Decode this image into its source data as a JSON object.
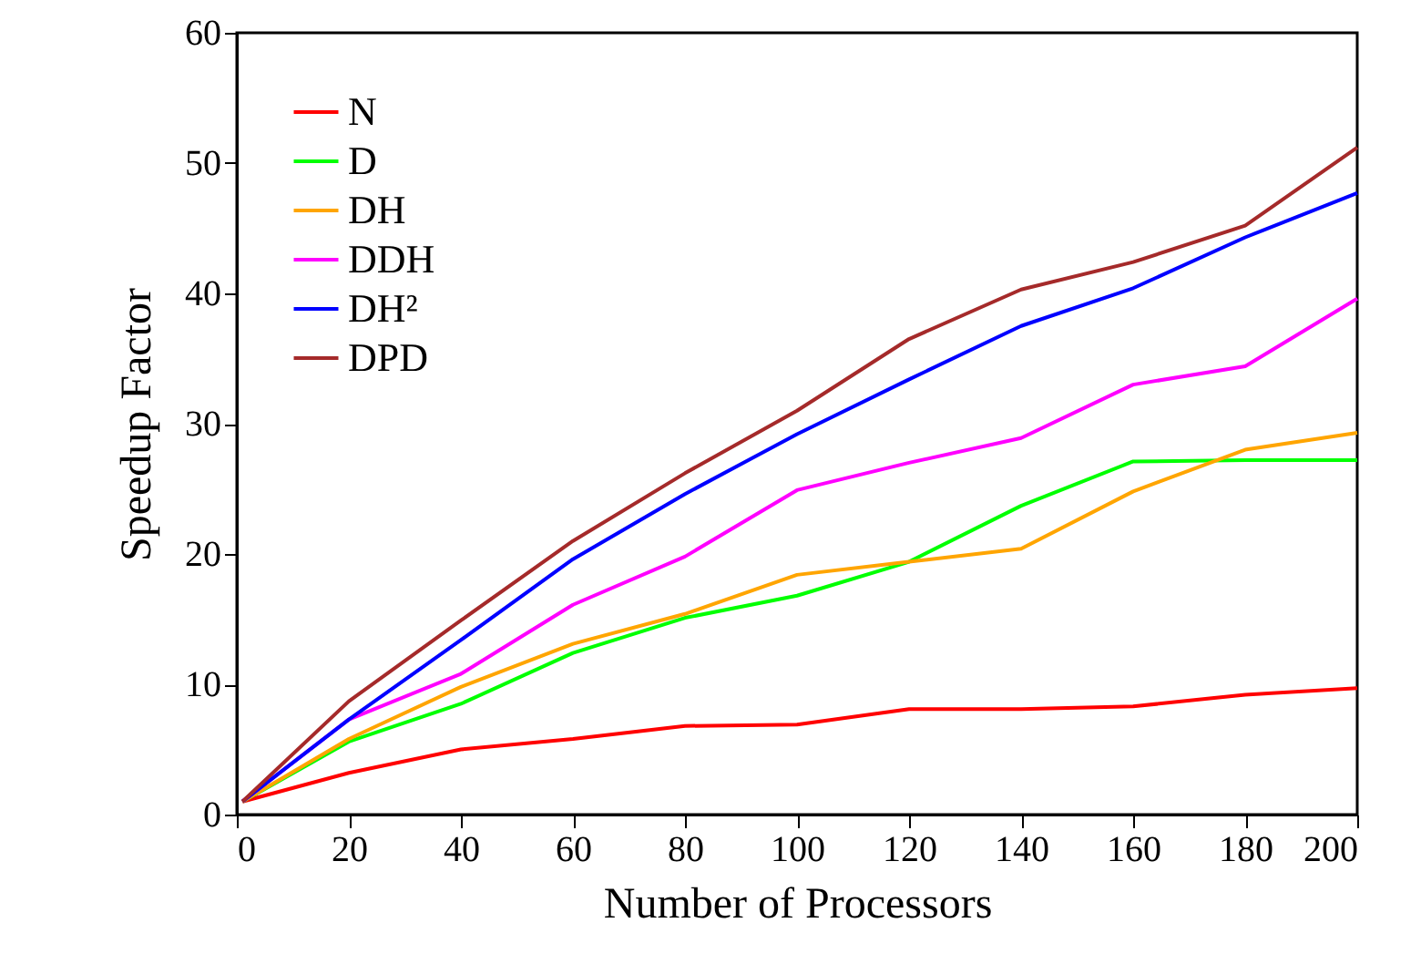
{
  "chart_data": {
    "type": "line",
    "xlabel": "Number of Processors",
    "ylabel": "Speedup Factor",
    "x": [
      1,
      20,
      40,
      60,
      80,
      100,
      120,
      140,
      160,
      180,
      200
    ],
    "xlim": [
      0,
      200
    ],
    "xticks": [
      0,
      20,
      40,
      60,
      80,
      100,
      120,
      140,
      160,
      180,
      200
    ],
    "ylim": [
      0,
      60
    ],
    "yticks": [
      0,
      10,
      20,
      30,
      40,
      50,
      60
    ],
    "grid": false,
    "legend": "top left",
    "line_style": "solid",
    "marker": "none",
    "series": [
      {
        "name": "N",
        "color": "#ff0000",
        "values": [
          1,
          3.2,
          5,
          5.8,
          6.8,
          6.9,
          8.1,
          8.1,
          8.3,
          9.2,
          9.7
        ]
      },
      {
        "name": "D",
        "color": "#00ff00",
        "values": [
          1,
          5.6,
          8.5,
          12.4,
          15.1,
          16.8,
          19.4,
          23.7,
          27.1,
          27.2,
          27.2
        ]
      },
      {
        "name": "DH",
        "color": "#ffa500",
        "values": [
          1,
          5.8,
          9.8,
          13.1,
          15.4,
          18.4,
          19.4,
          20.4,
          24.8,
          28.0,
          29.3
        ]
      },
      {
        "name": "DDH",
        "color": "#ff00ff",
        "values": [
          1,
          7.3,
          10.8,
          16.1,
          19.8,
          24.9,
          27.0,
          28.9,
          33.0,
          34.4,
          39.6
        ]
      },
      {
        "name": "DH²",
        "color": "#0000ff",
        "values": [
          1,
          7.3,
          13.4,
          19.6,
          24.6,
          29.2,
          33.4,
          37.5,
          40.4,
          44.3,
          47.7
        ]
      },
      {
        "name": "DPD",
        "color": "#a52a2a",
        "values": [
          1,
          8.7,
          14.9,
          21.0,
          26.2,
          31.0,
          36.5,
          40.3,
          42.4,
          45.2,
          51.2
        ]
      }
    ]
  }
}
